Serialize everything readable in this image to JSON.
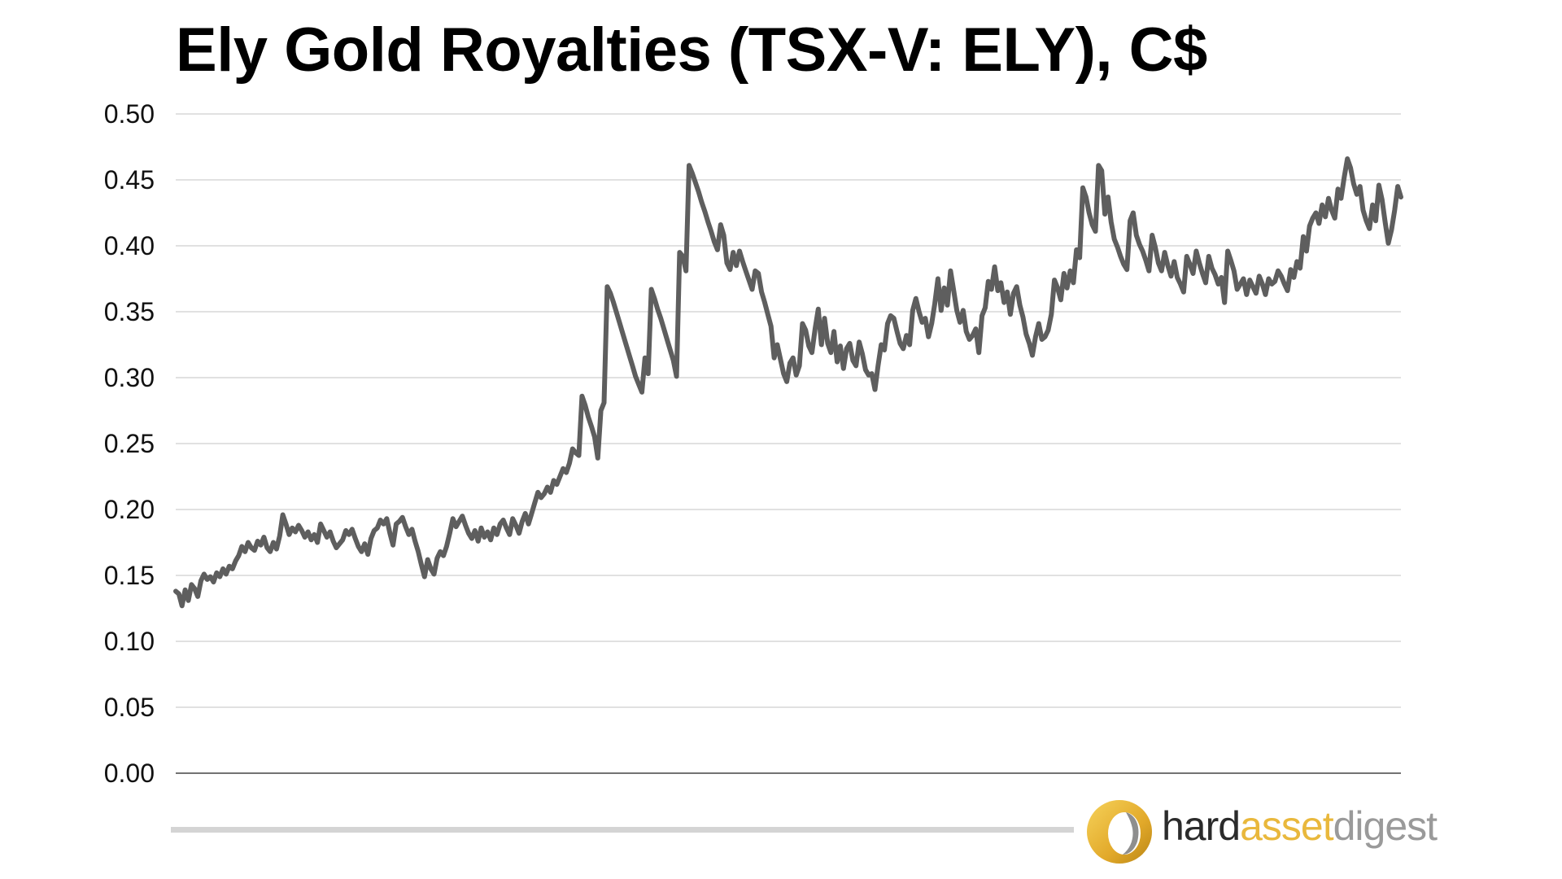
{
  "chart_data": {
    "type": "line",
    "title": "Ely Gold Royalties (TSX-V: ELY), C$",
    "xlabel": "",
    "ylabel": "",
    "ylim": [
      0,
      0.5
    ],
    "yticks": [
      "0.00",
      "0.05",
      "0.10",
      "0.15",
      "0.20",
      "0.25",
      "0.30",
      "0.35",
      "0.40",
      "0.45",
      "0.50"
    ],
    "grid": true,
    "legend": "none",
    "line_color": "#5e5e5e",
    "grid_color": "#cfcfcf",
    "series": [
      {
        "values": [
          0.138,
          0.136,
          0.127,
          0.139,
          0.131,
          0.143,
          0.14,
          0.134,
          0.146,
          0.151,
          0.147,
          0.149,
          0.145,
          0.152,
          0.149,
          0.155,
          0.151,
          0.157,
          0.155,
          0.161,
          0.165,
          0.172,
          0.168,
          0.175,
          0.171,
          0.169,
          0.176,
          0.173,
          0.179,
          0.171,
          0.168,
          0.175,
          0.17,
          0.18,
          0.196,
          0.189,
          0.181,
          0.186,
          0.183,
          0.188,
          0.184,
          0.179,
          0.183,
          0.177,
          0.181,
          0.175,
          0.189,
          0.184,
          0.179,
          0.183,
          0.176,
          0.171,
          0.174,
          0.177,
          0.184,
          0.181,
          0.185,
          0.178,
          0.172,
          0.168,
          0.174,
          0.166,
          0.178,
          0.184,
          0.186,
          0.192,
          0.189,
          0.193,
          0.182,
          0.173,
          0.189,
          0.191,
          0.194,
          0.187,
          0.181,
          0.185,
          0.176,
          0.168,
          0.158,
          0.149,
          0.162,
          0.155,
          0.151,
          0.163,
          0.168,
          0.165,
          0.172,
          0.182,
          0.193,
          0.187,
          0.191,
          0.195,
          0.188,
          0.182,
          0.178,
          0.184,
          0.176,
          0.186,
          0.179,
          0.183,
          0.177,
          0.186,
          0.181,
          0.189,
          0.192,
          0.186,
          0.181,
          0.193,
          0.188,
          0.182,
          0.191,
          0.197,
          0.189,
          0.197,
          0.205,
          0.213,
          0.209,
          0.212,
          0.217,
          0.213,
          0.222,
          0.219,
          0.225,
          0.231,
          0.228,
          0.235,
          0.246,
          0.243,
          0.241,
          0.286,
          0.279,
          0.27,
          0.263,
          0.255,
          0.239,
          0.275,
          0.281,
          0.369,
          0.364,
          0.357,
          0.349,
          0.341,
          0.333,
          0.325,
          0.317,
          0.309,
          0.301,
          0.295,
          0.289,
          0.315,
          0.303,
          0.367,
          0.36,
          0.352,
          0.345,
          0.337,
          0.329,
          0.321,
          0.313,
          0.301,
          0.395,
          0.392,
          0.381,
          0.461,
          0.455,
          0.448,
          0.441,
          0.433,
          0.426,
          0.418,
          0.411,
          0.403,
          0.397,
          0.416,
          0.408,
          0.387,
          0.382,
          0.395,
          0.385,
          0.396,
          0.388,
          0.381,
          0.374,
          0.367,
          0.381,
          0.379,
          0.365,
          0.357,
          0.348,
          0.339,
          0.315,
          0.325,
          0.314,
          0.303,
          0.297,
          0.311,
          0.315,
          0.302,
          0.309,
          0.341,
          0.336,
          0.324,
          0.319,
          0.337,
          0.352,
          0.325,
          0.345,
          0.326,
          0.319,
          0.335,
          0.312,
          0.324,
          0.307,
          0.322,
          0.326,
          0.313,
          0.309,
          0.327,
          0.318,
          0.306,
          0.302,
          0.303,
          0.291,
          0.309,
          0.325,
          0.321,
          0.341,
          0.347,
          0.345,
          0.335,
          0.326,
          0.322,
          0.332,
          0.325,
          0.351,
          0.36,
          0.35,
          0.342,
          0.345,
          0.331,
          0.341,
          0.356,
          0.375,
          0.351,
          0.368,
          0.355,
          0.381,
          0.366,
          0.351,
          0.342,
          0.351,
          0.335,
          0.329,
          0.332,
          0.337,
          0.319,
          0.347,
          0.353,
          0.373,
          0.367,
          0.384,
          0.366,
          0.372,
          0.357,
          0.365,
          0.348,
          0.364,
          0.369,
          0.355,
          0.346,
          0.333,
          0.326,
          0.317,
          0.331,
          0.341,
          0.329,
          0.331,
          0.336,
          0.348,
          0.374,
          0.368,
          0.359,
          0.379,
          0.368,
          0.381,
          0.372,
          0.397,
          0.391,
          0.444,
          0.437,
          0.425,
          0.416,
          0.411,
          0.461,
          0.457,
          0.424,
          0.437,
          0.418,
          0.405,
          0.399,
          0.392,
          0.386,
          0.382,
          0.419,
          0.425,
          0.408,
          0.401,
          0.396,
          0.389,
          0.381,
          0.408,
          0.399,
          0.387,
          0.381,
          0.395,
          0.385,
          0.377,
          0.388,
          0.376,
          0.371,
          0.365,
          0.392,
          0.386,
          0.379,
          0.396,
          0.387,
          0.379,
          0.372,
          0.392,
          0.383,
          0.378,
          0.371,
          0.376,
          0.357,
          0.396,
          0.389,
          0.381,
          0.367,
          0.371,
          0.375,
          0.363,
          0.374,
          0.369,
          0.364,
          0.377,
          0.371,
          0.363,
          0.375,
          0.371,
          0.373,
          0.381,
          0.377,
          0.371,
          0.366,
          0.382,
          0.376,
          0.388,
          0.383,
          0.407,
          0.396,
          0.415,
          0.421,
          0.425,
          0.417,
          0.431,
          0.422,
          0.436,
          0.427,
          0.421,
          0.443,
          0.436,
          0.452,
          0.466,
          0.459,
          0.447,
          0.439,
          0.445,
          0.427,
          0.419,
          0.413,
          0.431,
          0.419,
          0.446,
          0.435,
          0.418,
          0.402,
          0.412,
          0.427,
          0.445,
          0.437
        ]
      }
    ]
  },
  "brand": {
    "logo": "hard-asset-digest-ring-logo",
    "word_hard": "hard",
    "word_asset": "asset",
    "word_digest": "digest",
    "colors": {
      "hard": "#2b2b2b",
      "asset": "#e9b83c",
      "digest": "#9a9a9a"
    }
  }
}
